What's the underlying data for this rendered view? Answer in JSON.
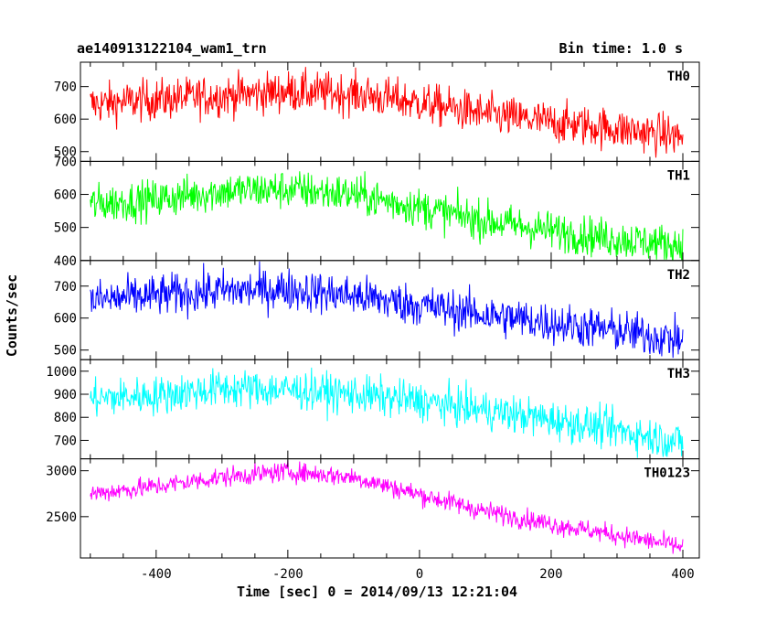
{
  "header": {
    "title": "ae140913122104_wam1_trn",
    "bin_time": "Bin time: 1.0 s"
  },
  "chart_data": {
    "type": "line",
    "xlabel": "Time [sec] 0 = 2014/09/13 12:21:04",
    "ylabel": "Counts/sec",
    "xlim": [
      -515,
      425
    ],
    "x_ticks": [
      -400,
      -200,
      0,
      200,
      400
    ],
    "x_range": [
      -500,
      400
    ],
    "bin_seconds": 1.0,
    "panels": [
      {
        "name": "TH0",
        "color": "#ff0000",
        "ylim": [
          470,
          775
        ],
        "y_ticks": [
          500,
          600,
          700
        ],
        "noise_sd": 32,
        "trend": [
          [
            -500,
            645
          ],
          [
            -400,
            660
          ],
          [
            -300,
            672
          ],
          [
            -200,
            685
          ],
          [
            -100,
            678
          ],
          [
            0,
            650
          ],
          [
            100,
            615
          ],
          [
            200,
            590
          ],
          [
            300,
            570
          ],
          [
            400,
            545
          ]
        ]
      },
      {
        "name": "TH1",
        "color": "#00ff00",
        "ylim": [
          400,
          700
        ],
        "y_ticks": [
          400,
          500,
          600,
          700
        ],
        "noise_sd": 30,
        "trend": [
          [
            -500,
            570
          ],
          [
            -400,
            585
          ],
          [
            -300,
            610
          ],
          [
            -200,
            615
          ],
          [
            -100,
            600
          ],
          [
            0,
            560
          ],
          [
            100,
            520
          ],
          [
            200,
            490
          ],
          [
            300,
            465
          ],
          [
            400,
            445
          ]
        ]
      },
      {
        "name": "TH2",
        "color": "#0000ff",
        "ylim": [
          470,
          780
        ],
        "y_ticks": [
          500,
          600,
          700
        ],
        "noise_sd": 33,
        "trend": [
          [
            -500,
            655
          ],
          [
            -400,
            670
          ],
          [
            -300,
            685
          ],
          [
            -200,
            690
          ],
          [
            -100,
            670
          ],
          [
            0,
            640
          ],
          [
            100,
            610
          ],
          [
            200,
            585
          ],
          [
            300,
            560
          ],
          [
            400,
            530
          ]
        ]
      },
      {
        "name": "TH3",
        "color": "#00ffff",
        "ylim": [
          620,
          1050
        ],
        "y_ticks": [
          700,
          800,
          900,
          1000
        ],
        "noise_sd": 42,
        "trend": [
          [
            -500,
            880
          ],
          [
            -400,
            895
          ],
          [
            -300,
            925
          ],
          [
            -200,
            920
          ],
          [
            -100,
            900
          ],
          [
            0,
            870
          ],
          [
            100,
            830
          ],
          [
            200,
            790
          ],
          [
            300,
            745
          ],
          [
            400,
            690
          ]
        ]
      },
      {
        "name": "TH0123",
        "color": "#ff00ff",
        "ylim": [
          2050,
          3130
        ],
        "y_ticks": [
          2500,
          3000
        ],
        "noise_sd": 55,
        "trend": [
          [
            -500,
            2750
          ],
          [
            -400,
            2830
          ],
          [
            -300,
            2930
          ],
          [
            -200,
            2990
          ],
          [
            -100,
            2930
          ],
          [
            0,
            2740
          ],
          [
            100,
            2560
          ],
          [
            200,
            2420
          ],
          [
            300,
            2300
          ],
          [
            400,
            2170
          ]
        ]
      }
    ]
  }
}
